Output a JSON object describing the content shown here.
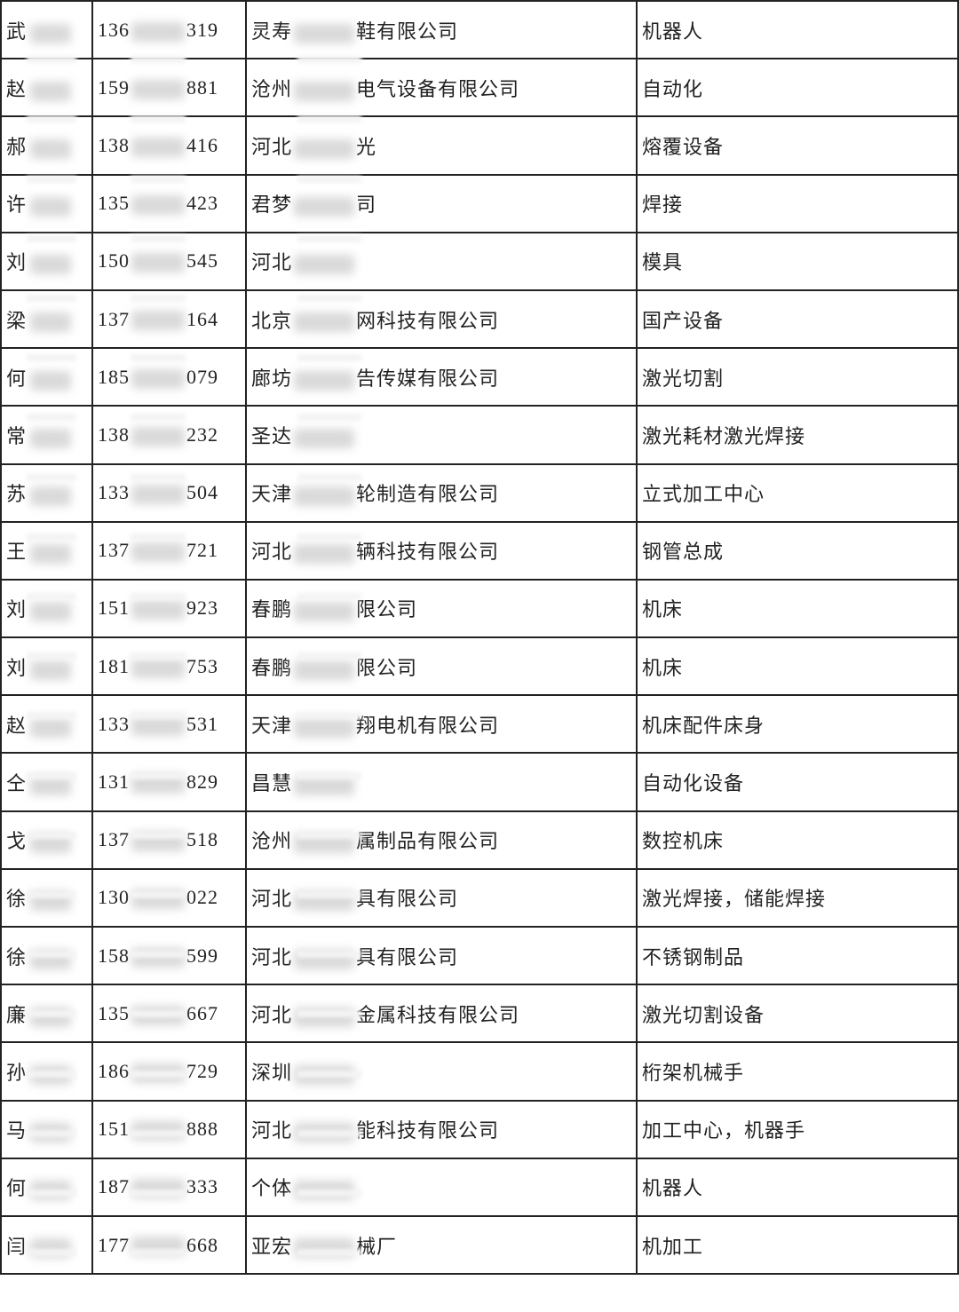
{
  "rows": [
    {
      "name": "武",
      "phone_prefix": "136",
      "phone_suffix": "319",
      "company_prefix": "灵寿",
      "company_suffix": "鞋有限公司",
      "category": "机器人"
    },
    {
      "name": "赵",
      "phone_prefix": "159",
      "phone_suffix": "881",
      "company_prefix": "沧州",
      "company_suffix": "电气设备有限公司",
      "category": "自动化"
    },
    {
      "name": "郝",
      "phone_prefix": "138",
      "phone_suffix": "416",
      "company_prefix": "河北",
      "company_suffix": "光",
      "category": "熔覆设备"
    },
    {
      "name": "许",
      "phone_prefix": "135",
      "phone_suffix": "423",
      "company_prefix": "君梦",
      "company_suffix": "司",
      "category": "焊接"
    },
    {
      "name": "刘",
      "phone_prefix": "150",
      "phone_suffix": "545",
      "company_prefix": "河北",
      "company_suffix": "",
      "category": "模具"
    },
    {
      "name": "梁",
      "phone_prefix": "137",
      "phone_suffix": "164",
      "company_prefix": "北京",
      "company_suffix": "网科技有限公司",
      "category": "国产设备"
    },
    {
      "name": "何",
      "phone_prefix": "185",
      "phone_suffix": "079",
      "company_prefix": "廊坊",
      "company_suffix": "告传媒有限公司",
      "category": "激光切割"
    },
    {
      "name": "常",
      "phone_prefix": "138",
      "phone_suffix": "232",
      "company_prefix": "圣达",
      "company_suffix": "",
      "category": "激光耗材激光焊接"
    },
    {
      "name": "苏",
      "phone_prefix": "133",
      "phone_suffix": "504",
      "company_prefix": "天津",
      "company_suffix": "轮制造有限公司",
      "category": "立式加工中心"
    },
    {
      "name": "王",
      "phone_prefix": "137",
      "phone_suffix": "721",
      "company_prefix": "河北",
      "company_suffix": "辆科技有限公司",
      "category": "钢管总成"
    },
    {
      "name": "刘",
      "phone_prefix": "151",
      "phone_suffix": "923",
      "company_prefix": "春鹏",
      "company_suffix": "限公司",
      "category": "机床"
    },
    {
      "name": "刘",
      "phone_prefix": "181",
      "phone_suffix": "753",
      "company_prefix": "春鹏",
      "company_suffix": "限公司",
      "category": "机床"
    },
    {
      "name": "赵",
      "phone_prefix": "133",
      "phone_suffix": "531",
      "company_prefix": "天津",
      "company_suffix": "翔电机有限公司",
      "category": "机床配件床身"
    },
    {
      "name": "仝",
      "phone_prefix": "131",
      "phone_suffix": "829",
      "company_prefix": "昌慧",
      "company_suffix": "",
      "category": "自动化设备"
    },
    {
      "name": "戈",
      "phone_prefix": "137",
      "phone_suffix": "518",
      "company_prefix": "沧州",
      "company_suffix": "属制品有限公司",
      "category": "数控机床"
    },
    {
      "name": "徐",
      "phone_prefix": "130",
      "phone_suffix": "022",
      "company_prefix": "河北",
      "company_suffix": "具有限公司",
      "category": "激光焊接，储能焊接"
    },
    {
      "name": "徐",
      "phone_prefix": "158",
      "phone_suffix": "599",
      "company_prefix": "河北",
      "company_suffix": "具有限公司",
      "category": "不锈钢制品"
    },
    {
      "name": "廉",
      "phone_prefix": "135",
      "phone_suffix": "667",
      "company_prefix": "河北",
      "company_suffix": "金属科技有限公司",
      "category": "激光切割设备"
    },
    {
      "name": "孙",
      "phone_prefix": "186",
      "phone_suffix": "729",
      "company_prefix": "深圳",
      "company_suffix": "",
      "category": "桁架机械手"
    },
    {
      "name": "马",
      "phone_prefix": "151",
      "phone_suffix": "888",
      "company_prefix": "河北",
      "company_suffix": "能科技有限公司",
      "category": "加工中心，机器手"
    },
    {
      "name": "何",
      "phone_prefix": "187",
      "phone_suffix": "333",
      "company_prefix": "个体",
      "company_suffix": "",
      "category": "机器人"
    },
    {
      "name": "闫",
      "phone_prefix": "177",
      "phone_suffix": "668",
      "company_prefix": "亚宏",
      "company_suffix": "械厂",
      "category": "机加工"
    }
  ]
}
